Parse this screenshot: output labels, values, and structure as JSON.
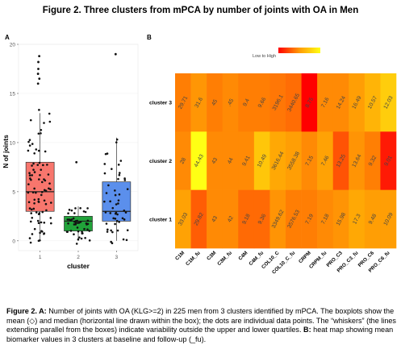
{
  "title": "Figure 2. Three clusters from mPCA by number of joints with OA in Men",
  "caption": {
    "prefix": "Figure 2. A:",
    "part_a": " Number of joints with OA (KLG>=2) in 225 men from 3 clusters identified by mPCA. The boxplots show the mean (◇) and median (horizontal line drawn within the box); the dots are individual data points. The “whiskers” (the lines extending parallel from the boxes) indicate variability outside the upper and lower quartiles. ",
    "b_label": "B:",
    "part_b": " heat map showing mean biomarker values in 3 clusters at baseline and follow-up (_fu)."
  },
  "chart_data": [
    {
      "type": "box",
      "panel_label": "A",
      "xlabel": "cluster",
      "ylabel": "N of joints",
      "categories": [
        "1",
        "2",
        "3"
      ],
      "ylim": [
        -1,
        20
      ],
      "yticks": [
        0,
        5,
        10,
        15,
        20
      ],
      "colors": [
        "#f8766d",
        "#21a33a",
        "#5b8fec"
      ],
      "boxes": [
        {
          "cluster": "1",
          "min": 0,
          "q1": 3,
          "median": 5,
          "q3": 8,
          "max": 13
        },
        {
          "cluster": "2",
          "min": 0,
          "q1": 1,
          "median": 2,
          "q3": 2.5,
          "max": 3.5
        },
        {
          "cluster": "3",
          "min": 0,
          "q1": 2,
          "median": 3,
          "q3": 6,
          "max": 10.5
        }
      ],
      "outliers": [
        {
          "cluster": "1",
          "y": [
            16,
            16.5,
            17,
            17.5,
            18.2,
            18.8
          ]
        },
        {
          "cluster": "2",
          "y": [
            8
          ]
        },
        {
          "cluster": "3",
          "y": [
            19
          ]
        }
      ],
      "points": [
        {
          "cluster": "1",
          "y": [
            0,
            0,
            0,
            0,
            1,
            1,
            1,
            1,
            1,
            1,
            1,
            2,
            2,
            2,
            2,
            2,
            2,
            2,
            2,
            3,
            3,
            3,
            3,
            3,
            3,
            3,
            3,
            3,
            4,
            4,
            4,
            4,
            4,
            4,
            4,
            4,
            4,
            5,
            5,
            5,
            5,
            5,
            5,
            5,
            5,
            5,
            5,
            6,
            6,
            6,
            6,
            6,
            6,
            6,
            6,
            7,
            7,
            7,
            7,
            7,
            7,
            7,
            7,
            8,
            8,
            8,
            8,
            8,
            8,
            9,
            9,
            9,
            9,
            9,
            10,
            10,
            10,
            10,
            11,
            11,
            11,
            12,
            12,
            12,
            13,
            13
          ]
        },
        {
          "cluster": "2",
          "y": [
            0,
            0,
            0,
            0,
            0,
            0,
            1,
            1,
            1,
            1,
            1,
            1,
            1,
            1,
            1,
            1,
            1,
            1,
            2,
            2,
            2,
            2,
            2,
            2,
            2,
            2,
            2,
            2,
            2,
            2,
            2,
            2,
            2,
            2,
            2,
            2,
            2,
            3,
            3,
            3,
            3,
            3,
            3,
            3,
            3,
            3
          ]
        },
        {
          "cluster": "3",
          "y": [
            0,
            0,
            0,
            0,
            1,
            1,
            1,
            1,
            1,
            1,
            2,
            2,
            2,
            2,
            2,
            2,
            2,
            2,
            3,
            3,
            3,
            3,
            3,
            3,
            3,
            3,
            4,
            4,
            4,
            4,
            4,
            5,
            5,
            5,
            5,
            5,
            6,
            6,
            6,
            6,
            7,
            7,
            7,
            7,
            8,
            8,
            8,
            9,
            9,
            10,
            10
          ]
        }
      ]
    },
    {
      "type": "heatmap",
      "panel_label": "B",
      "legend_label": "Low to High",
      "columns": [
        "C1M",
        "C1M_fu",
        "C3M",
        "C3M_fu",
        "C4M",
        "C4M_fu",
        "COL10_C",
        "COL10_C_fu",
        "CRPM",
        "CRPM_fu",
        "PRO_C3",
        "PRO_C3_fu",
        "PRO_C6",
        "PRO_C6_fu"
      ],
      "rows": [
        {
          "label": "cluster 3",
          "values": [
            "29.71",
            "31.6",
            "45",
            ".45",
            "9.4",
            "9.66",
            "3196.1",
            "3440.65",
            "8.75",
            "7.16",
            "14.24",
            "16.49",
            "10.57",
            "12.03"
          ],
          "colors": [
            "#ff7e04",
            "#ff9605",
            "#ff7e04",
            "#ff8a05",
            "#ff7e04",
            "#ff7e04",
            "#ff7706",
            "#ff6d05",
            "#ff0000",
            "#ff8a05",
            "#ff8a05",
            "#ff9e05",
            "#ffb407",
            "#ffcd0c"
          ]
        },
        {
          "label": "cluster 2",
          "values": [
            "28",
            "44.43",
            "43",
            "44",
            "9.41",
            "10.49",
            "3616.44",
            "3558.38",
            "7.15",
            "7.46",
            "13.25",
            "13.64",
            "9.32",
            "9.01"
          ],
          "colors": [
            "#ff8a05",
            "#ffff14",
            "#ff8a05",
            "#ff8a05",
            "#ff8a05",
            "#ffc60a",
            "#ffa805",
            "#ff9e05",
            "#ff8a05",
            "#ffa205",
            "#ff5305",
            "#ff9405",
            "#ff7f04",
            "#ff1a05"
          ]
        },
        {
          "label": "cluster 1",
          "values": [
            "33.03",
            "29.82",
            "43",
            "42",
            "9.18",
            "9.36",
            "3349.62",
            "3576.53",
            "7.19",
            "7.18",
            "15.98",
            "17.3",
            "9.48",
            "10.09"
          ],
          "colors": [
            "#ffa205",
            "#ff5d05",
            "#ff8a05",
            "#ff8a05",
            "#ff6a05",
            "#ff6a05",
            "#ff9405",
            "#ff7e04",
            "#ff7e04",
            "#ff8a05",
            "#ff9405",
            "#ffa805",
            "#ff9e05",
            "#ff9e05"
          ]
        }
      ]
    }
  ]
}
